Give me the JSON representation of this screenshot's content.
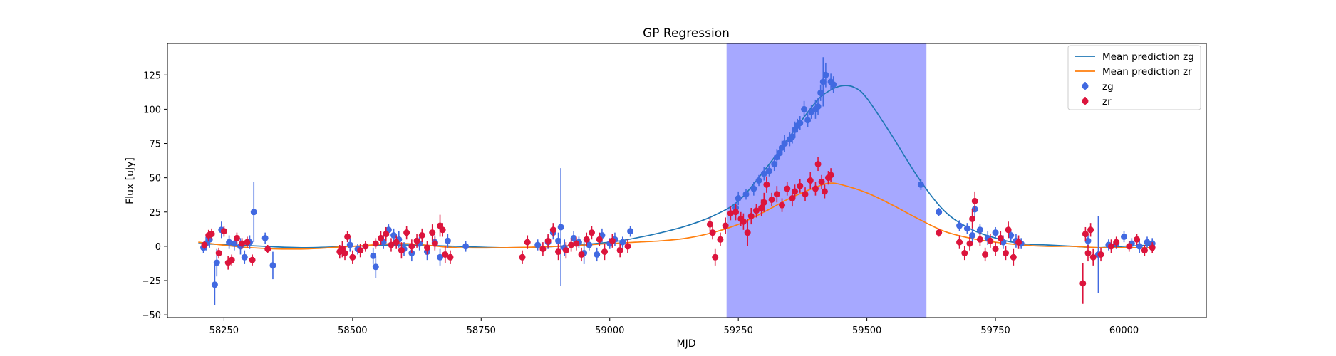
{
  "chart_data": {
    "type": "scatter",
    "title": "GP Regression",
    "xlabel": "MJD",
    "ylabel": "Flux [uJy]",
    "xlim": [
      58140,
      60160
    ],
    "ylim": [
      -52,
      148
    ],
    "xticks": [
      58250,
      58500,
      58750,
      59000,
      59250,
      59500,
      59750,
      60000
    ],
    "yticks": [
      -50,
      -25,
      0,
      25,
      50,
      75,
      100,
      125
    ],
    "grid": false,
    "legend_position": "top-right",
    "shaded_region": {
      "x_start": 59228,
      "x_end": 59615,
      "color": "#a6a8ff"
    },
    "series": [
      {
        "name": "Mean prediction zg",
        "kind": "line",
        "color": "#1f77b4",
        "x": [
          58200,
          58300,
          58400,
          58500,
          58600,
          58700,
          58800,
          58900,
          59000,
          59050,
          59100,
          59150,
          59200,
          59250,
          59300,
          59350,
          59400,
          59425,
          59450,
          59475,
          59500,
          59550,
          59600,
          59650,
          59700,
          59750,
          59800,
          59850,
          59900,
          59950,
          60000,
          60060
        ],
        "y": [
          2,
          0.5,
          -1,
          0,
          1,
          0,
          -1,
          0,
          3,
          6,
          10,
          15,
          22,
          33,
          55,
          80,
          105,
          113,
          117,
          116,
          108,
          80,
          50,
          26,
          13,
          6,
          2,
          1,
          0,
          -1,
          0,
          1
        ]
      },
      {
        "name": "Mean prediction zr",
        "kind": "line",
        "color": "#ff7f0e",
        "x": [
          58200,
          58300,
          58400,
          58500,
          58600,
          58700,
          58800,
          58900,
          59000,
          59050,
          59100,
          59150,
          59200,
          59250,
          59300,
          59350,
          59400,
          59425,
          59450,
          59500,
          59550,
          59600,
          59650,
          59700,
          59750,
          59800,
          59850,
          59900,
          59950,
          60000,
          60060
        ],
        "y": [
          3,
          -1,
          -2,
          0,
          2,
          -1,
          -1,
          0,
          2,
          3,
          4,
          6,
          10,
          16,
          25,
          35,
          43,
          46,
          45,
          39,
          30,
          20,
          11,
          6,
          3,
          1,
          0,
          0,
          -1,
          -1,
          -1
        ]
      },
      {
        "name": "zg",
        "kind": "errorbar",
        "color": "#4169e1",
        "points": [
          [
            58210,
            -1,
            4
          ],
          [
            58215,
            2,
            5
          ],
          [
            58222,
            5,
            6
          ],
          [
            58232,
            -28,
            15
          ],
          [
            58236,
            -12,
            10
          ],
          [
            58245,
            12,
            6
          ],
          [
            58260,
            3,
            5
          ],
          [
            58270,
            2,
            5
          ],
          [
            58282,
            0,
            6
          ],
          [
            58290,
            -8,
            5
          ],
          [
            58300,
            3,
            5
          ],
          [
            58308,
            25,
            22
          ],
          [
            58330,
            6,
            4
          ],
          [
            58345,
            -14,
            10
          ],
          [
            58480,
            -3,
            4
          ],
          [
            58495,
            1,
            5
          ],
          [
            58510,
            -2,
            4
          ],
          [
            58540,
            -7,
            6
          ],
          [
            58545,
            -15,
            8
          ],
          [
            58560,
            3,
            5
          ],
          [
            58570,
            12,
            4
          ],
          [
            58580,
            8,
            5
          ],
          [
            58590,
            5,
            6
          ],
          [
            58600,
            -2,
            5
          ],
          [
            58615,
            -5,
            6
          ],
          [
            58630,
            2,
            5
          ],
          [
            58645,
            -4,
            6
          ],
          [
            58660,
            3,
            5
          ],
          [
            58670,
            -8,
            6
          ],
          [
            58685,
            4,
            5
          ],
          [
            58720,
            0,
            4
          ],
          [
            58860,
            1,
            4
          ],
          [
            58880,
            3,
            5
          ],
          [
            58890,
            10,
            5
          ],
          [
            58900,
            4,
            6
          ],
          [
            58905,
            14,
            43
          ],
          [
            58912,
            -1,
            6
          ],
          [
            58930,
            6,
            5
          ],
          [
            58940,
            3,
            4
          ],
          [
            58950,
            -5,
            8
          ],
          [
            58960,
            1,
            4
          ],
          [
            58975,
            -6,
            5
          ],
          [
            58985,
            8,
            5
          ],
          [
            59000,
            2,
            4
          ],
          [
            59010,
            5,
            5
          ],
          [
            59025,
            3,
            4
          ],
          [
            59040,
            11,
            4
          ],
          [
            59245,
            28,
            4
          ],
          [
            59250,
            35,
            5
          ],
          [
            59265,
            38,
            4
          ],
          [
            59280,
            42,
            5
          ],
          [
            59290,
            48,
            4
          ],
          [
            59300,
            53,
            5
          ],
          [
            59310,
            55,
            4
          ],
          [
            59320,
            60,
            5
          ],
          [
            59325,
            65,
            6
          ],
          [
            59330,
            68,
            5
          ],
          [
            59335,
            72,
            5
          ],
          [
            59340,
            75,
            6
          ],
          [
            59350,
            78,
            5
          ],
          [
            59355,
            80,
            5
          ],
          [
            59360,
            85,
            6
          ],
          [
            59365,
            88,
            5
          ],
          [
            59370,
            90,
            5
          ],
          [
            59378,
            100,
            6
          ],
          [
            59385,
            92,
            5
          ],
          [
            59392,
            98,
            5
          ],
          [
            59400,
            100,
            7
          ],
          [
            59405,
            102,
            6
          ],
          [
            59410,
            112,
            6
          ],
          [
            59415,
            120,
            18
          ],
          [
            59420,
            125,
            9
          ],
          [
            59430,
            120,
            6
          ],
          [
            59435,
            118,
            6
          ],
          [
            59605,
            45,
            4
          ],
          [
            59640,
            25,
            3
          ],
          [
            59680,
            15,
            4
          ],
          [
            59695,
            13,
            4
          ],
          [
            59705,
            8,
            5
          ],
          [
            59710,
            27,
            6
          ],
          [
            59720,
            12,
            4
          ],
          [
            59735,
            6,
            5
          ],
          [
            59750,
            10,
            4
          ],
          [
            59765,
            3,
            5
          ],
          [
            59780,
            8,
            4
          ],
          [
            59790,
            4,
            5
          ],
          [
            59800,
            2,
            4
          ],
          [
            59930,
            4,
            5
          ],
          [
            59950,
            -6,
            28
          ],
          [
            59970,
            1,
            4
          ],
          [
            59985,
            2,
            4
          ],
          [
            60000,
            7,
            4
          ],
          [
            60015,
            2,
            4
          ],
          [
            60030,
            0,
            5
          ],
          [
            60045,
            3,
            4
          ],
          [
            60055,
            2,
            4
          ]
        ]
      },
      {
        "name": "zr",
        "kind": "errorbar",
        "color": "#dc143c",
        "points": [
          [
            58212,
            1,
            3
          ],
          [
            58220,
            8,
            4
          ],
          [
            58226,
            9,
            4
          ],
          [
            58240,
            -5,
            4
          ],
          [
            58250,
            11,
            4
          ],
          [
            58258,
            -12,
            5
          ],
          [
            58265,
            -10,
            4
          ],
          [
            58275,
            6,
            4
          ],
          [
            58285,
            2,
            4
          ],
          [
            58295,
            3,
            4
          ],
          [
            58305,
            -10,
            4
          ],
          [
            58335,
            -2,
            3
          ],
          [
            58475,
            -4,
            5
          ],
          [
            58480,
            -2,
            6
          ],
          [
            58485,
            -5,
            5
          ],
          [
            58490,
            7,
            4
          ],
          [
            58500,
            -8,
            5
          ],
          [
            58515,
            -3,
            5
          ],
          [
            58525,
            0,
            4
          ],
          [
            58545,
            2,
            4
          ],
          [
            58555,
            6,
            5
          ],
          [
            58565,
            9,
            5
          ],
          [
            58575,
            1,
            5
          ],
          [
            58585,
            3,
            5
          ],
          [
            58595,
            -3,
            6
          ],
          [
            58605,
            10,
            5
          ],
          [
            58615,
            0,
            5
          ],
          [
            58625,
            4,
            5
          ],
          [
            58635,
            8,
            5
          ],
          [
            58645,
            -1,
            5
          ],
          [
            58655,
            10,
            6
          ],
          [
            58660,
            2,
            5
          ],
          [
            58670,
            15,
            8
          ],
          [
            58675,
            12,
            5
          ],
          [
            58680,
            -6,
            6
          ],
          [
            58690,
            -8,
            5
          ],
          [
            58830,
            -8,
            5
          ],
          [
            58840,
            3,
            5
          ],
          [
            58870,
            -2,
            5
          ],
          [
            58880,
            4,
            5
          ],
          [
            58890,
            12,
            5
          ],
          [
            58900,
            -4,
            6
          ],
          [
            58915,
            -3,
            6
          ],
          [
            58925,
            1,
            5
          ],
          [
            58935,
            2,
            5
          ],
          [
            58945,
            -6,
            5
          ],
          [
            58955,
            5,
            5
          ],
          [
            58965,
            10,
            5
          ],
          [
            58980,
            5,
            5
          ],
          [
            58990,
            -4,
            6
          ],
          [
            59005,
            4,
            5
          ],
          [
            59020,
            -3,
            5
          ],
          [
            59035,
            0,
            5
          ],
          [
            59195,
            16,
            5
          ],
          [
            59200,
            10,
            5
          ],
          [
            59205,
            -8,
            6
          ],
          [
            59215,
            5,
            5
          ],
          [
            59225,
            15,
            6
          ],
          [
            59235,
            24,
            5
          ],
          [
            59245,
            25,
            6
          ],
          [
            59255,
            20,
            5
          ],
          [
            59260,
            18,
            6
          ],
          [
            59268,
            10,
            10
          ],
          [
            59275,
            22,
            6
          ],
          [
            59285,
            26,
            5
          ],
          [
            59295,
            28,
            6
          ],
          [
            59300,
            32,
            7
          ],
          [
            59305,
            45,
            6
          ],
          [
            59315,
            34,
            5
          ],
          [
            59325,
            38,
            6
          ],
          [
            59335,
            30,
            5
          ],
          [
            59345,
            42,
            5
          ],
          [
            59355,
            35,
            6
          ],
          [
            59360,
            40,
            5
          ],
          [
            59370,
            44,
            5
          ],
          [
            59380,
            38,
            5
          ],
          [
            59390,
            48,
            6
          ],
          [
            59400,
            42,
            5
          ],
          [
            59405,
            60,
            5
          ],
          [
            59412,
            47,
            5
          ],
          [
            59418,
            40,
            5
          ],
          [
            59425,
            50,
            5
          ],
          [
            59430,
            52,
            5
          ],
          [
            59640,
            10,
            3
          ],
          [
            59680,
            3,
            5
          ],
          [
            59690,
            -5,
            5
          ],
          [
            59700,
            2,
            5
          ],
          [
            59705,
            20,
            7
          ],
          [
            59710,
            33,
            7
          ],
          [
            59720,
            5,
            5
          ],
          [
            59730,
            -6,
            5
          ],
          [
            59740,
            4,
            5
          ],
          [
            59750,
            -2,
            5
          ],
          [
            59760,
            6,
            5
          ],
          [
            59770,
            -5,
            5
          ],
          [
            59775,
            12,
            6
          ],
          [
            59785,
            -8,
            6
          ],
          [
            59795,
            3,
            5
          ],
          [
            59920,
            -27,
            15
          ],
          [
            59925,
            9,
            5
          ],
          [
            59930,
            -5,
            6
          ],
          [
            59935,
            12,
            5
          ],
          [
            59940,
            -8,
            6
          ],
          [
            59955,
            -6,
            5
          ],
          [
            59975,
            0,
            5
          ],
          [
            59985,
            3,
            4
          ],
          [
            60010,
            0,
            4
          ],
          [
            60025,
            5,
            4
          ],
          [
            60040,
            -3,
            4
          ],
          [
            60055,
            -1,
            4
          ]
        ]
      }
    ]
  }
}
